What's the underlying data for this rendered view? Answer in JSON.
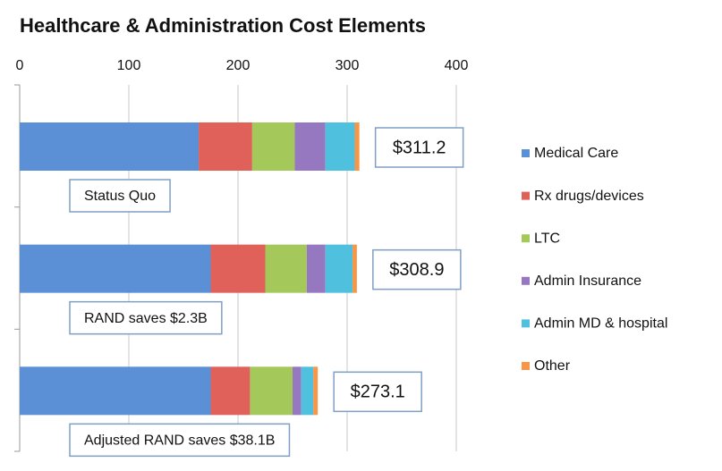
{
  "chart_data": {
    "type": "stacked-barh",
    "title": "Healthcare & Administration Cost Elements",
    "categories": [
      "Status Quo",
      "RAND saves $2.3B",
      "Adjusted RAND saves $38.1B"
    ],
    "series": [
      {
        "name": "Medical Care",
        "color": "#5b8fd6",
        "values": [
          164,
          175,
          175
        ]
      },
      {
        "name": "Rx drugs/devices",
        "color": "#e0605a",
        "values": [
          49,
          50,
          36
        ]
      },
      {
        "name": "LTC",
        "color": "#a4c95a",
        "values": [
          39,
          38,
          39
        ]
      },
      {
        "name": "Admin Insurance",
        "color": "#9678c0",
        "values": [
          28,
          17,
          8
        ]
      },
      {
        "name": "Admin MD & hospital",
        "color": "#4fc0dd",
        "values": [
          27,
          25,
          11
        ]
      },
      {
        "name": "Other",
        "color": "#f79646",
        "values": [
          4.2,
          3.9,
          4.1
        ]
      }
    ],
    "totals": [
      311.2,
      308.9,
      273.1
    ],
    "total_labels": [
      "$311.2",
      "$308.9",
      "$273.1"
    ],
    "xlim": [
      0,
      400
    ],
    "xticks": [
      0,
      100,
      200,
      300,
      400
    ],
    "grid": true,
    "legend": "right"
  }
}
